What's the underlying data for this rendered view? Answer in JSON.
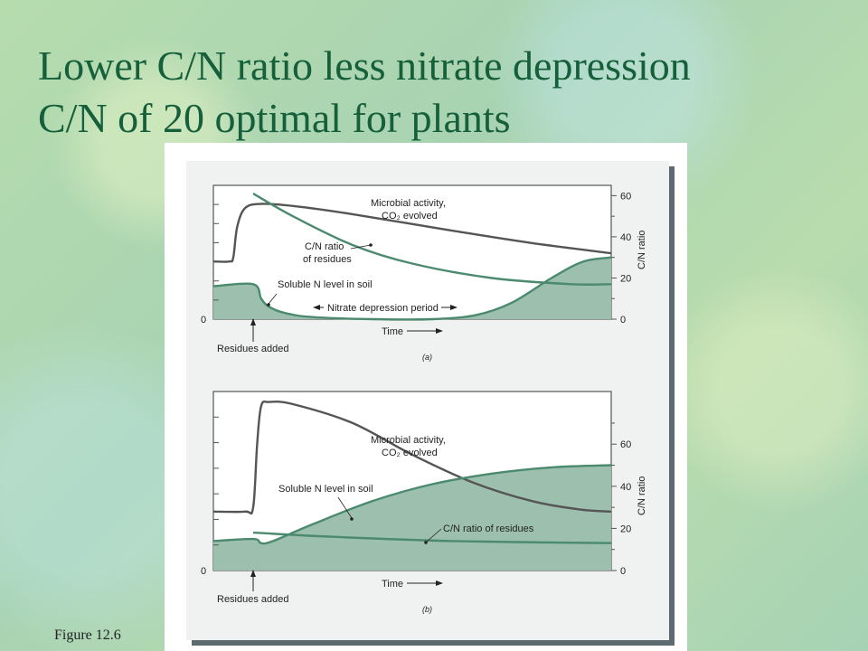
{
  "slide": {
    "title_lines": [
      "Lower C/N ratio less nitrate depression",
      "C/N of 20 optimal for plants"
    ],
    "figure_caption": "Figure 12.6"
  },
  "colors": {
    "title": "#155f3a",
    "green_curve": "#4b8a6e",
    "fill": "#9cc0ad",
    "gray_curve": "#555555"
  },
  "chart_data": [
    {
      "type": "line",
      "panel_label": "(a)",
      "xlabel": "Time",
      "ylabel_right": "C/N ratio",
      "yticks_right": [
        "0",
        "20",
        "40",
        "60"
      ],
      "ylim_right": [
        0,
        65
      ],
      "left_zero_label": "0",
      "event_label": "Residues added",
      "annotations": {
        "microbial_line1": "Microbial activity,",
        "microbial_line2": "CO₂ evolved",
        "cn_line1": "C/N ratio",
        "cn_line2": "of residues",
        "soluble_n": "Soluble N level in soil",
        "nitrate_period": "Nitrate depression period"
      },
      "series": [
        {
          "key": "microbial",
          "x": [
            0,
            4,
            5,
            6,
            8,
            12,
            20,
            35,
            60,
            80,
            100
          ],
          "y": [
            28,
            28,
            30,
            45,
            54,
            56,
            55,
            51,
            43,
            37,
            32
          ]
        },
        {
          "key": "cn",
          "x": [
            10,
            20,
            35,
            50,
            70,
            90,
            100
          ],
          "y": [
            61,
            50,
            36,
            27,
            20,
            17,
            17
          ]
        },
        {
          "key": "soluble",
          "x": [
            0,
            10,
            12,
            14,
            18,
            25,
            40,
            55,
            66,
            75,
            85,
            93,
            100
          ],
          "y": [
            16,
            17,
            10,
            6,
            3,
            1,
            0,
            0,
            2,
            8,
            20,
            28,
            30
          ]
        }
      ]
    },
    {
      "type": "line",
      "panel_label": "(b)",
      "xlabel": "Time",
      "ylabel_right": "C/N ratio",
      "yticks_right": [
        "0",
        "20",
        "40",
        "60"
      ],
      "ylim_right": [
        0,
        85
      ],
      "left_zero_label": "0",
      "event_label": "Residues added",
      "annotations": {
        "microbial_line1": "Microbial activity,",
        "microbial_line2": "CO₂ evolved",
        "soluble_n": "Soluble N level in soil",
        "cn_label": "C/N ratio of residues"
      },
      "series": [
        {
          "key": "microbial",
          "x": [
            0,
            8,
            10,
            11,
            12,
            14,
            20,
            35,
            50,
            65,
            80,
            92,
            100
          ],
          "y": [
            28,
            28,
            30,
            60,
            78,
            80,
            79,
            70,
            55,
            42,
            33,
            29,
            28
          ]
        },
        {
          "key": "soluble",
          "x": [
            0,
            10,
            12,
            15,
            25,
            40,
            55,
            70,
            85,
            100
          ],
          "y": [
            14,
            15,
            13,
            14,
            22,
            33,
            41,
            46,
            49,
            50
          ]
        },
        {
          "key": "cn",
          "x": [
            10,
            30,
            60,
            100
          ],
          "y": [
            18,
            16,
            14,
            13
          ]
        }
      ]
    }
  ]
}
